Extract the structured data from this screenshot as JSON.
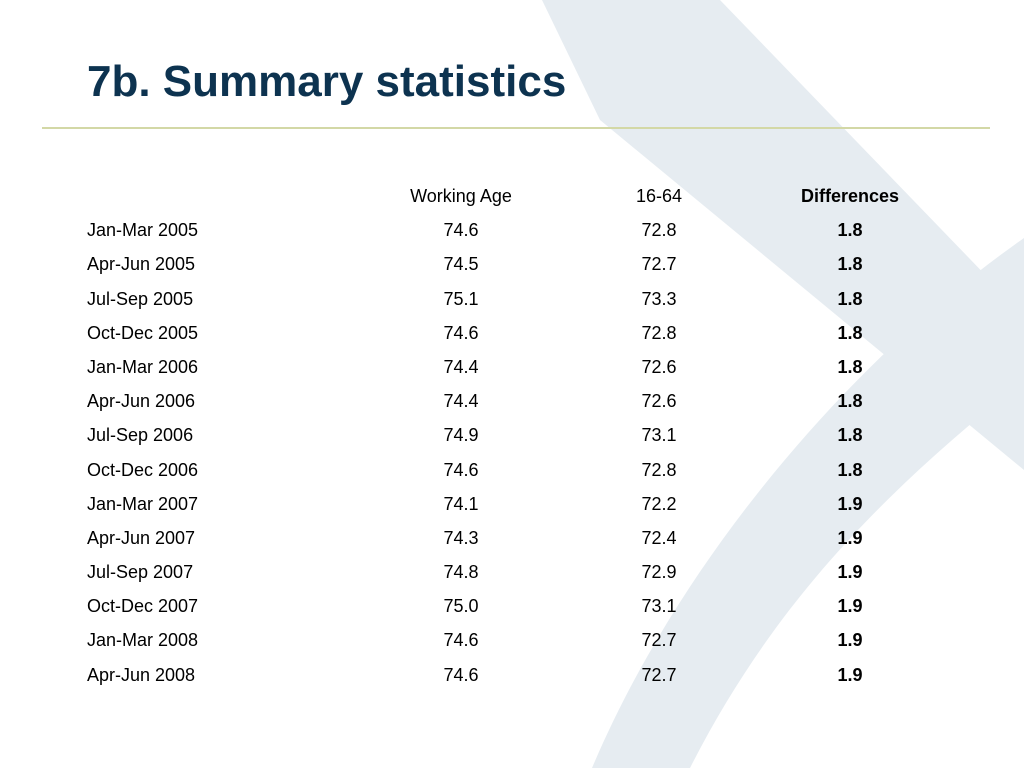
{
  "title": "7b. Summary statistics",
  "colors": {
    "title": "#0d3350",
    "rule": "#d3d8a6",
    "watermark": "#e6ecf1"
  },
  "table": {
    "headers": {
      "period": "",
      "working_age": "Working Age",
      "age_16_64": "16-64",
      "differences": "Differences"
    },
    "rows": [
      {
        "period": "Jan-Mar 2005",
        "working_age": "74.6",
        "age_16_64": "72.8",
        "difference": "1.8"
      },
      {
        "period": "Apr-Jun 2005",
        "working_age": "74.5",
        "age_16_64": "72.7",
        "difference": "1.8"
      },
      {
        "period": "Jul-Sep 2005",
        "working_age": "75.1",
        "age_16_64": "73.3",
        "difference": "1.8"
      },
      {
        "period": "Oct-Dec 2005",
        "working_age": "74.6",
        "age_16_64": "72.8",
        "difference": "1.8"
      },
      {
        "period": "Jan-Mar 2006",
        "working_age": "74.4",
        "age_16_64": "72.6",
        "difference": "1.8"
      },
      {
        "period": "Apr-Jun 2006",
        "working_age": "74.4",
        "age_16_64": "72.6",
        "difference": "1.8"
      },
      {
        "period": "Jul-Sep 2006",
        "working_age": "74.9",
        "age_16_64": "73.1",
        "difference": "1.8"
      },
      {
        "period": "Oct-Dec 2006",
        "working_age": "74.6",
        "age_16_64": "72.8",
        "difference": "1.8"
      },
      {
        "period": "Jan-Mar 2007",
        "working_age": "74.1",
        "age_16_64": "72.2",
        "difference": "1.9"
      },
      {
        "period": "Apr-Jun 2007",
        "working_age": "74.3",
        "age_16_64": "72.4",
        "difference": "1.9"
      },
      {
        "period": "Jul-Sep 2007",
        "working_age": "74.8",
        "age_16_64": "72.9",
        "difference": "1.9"
      },
      {
        "period": "Oct-Dec 2007",
        "working_age": "75.0",
        "age_16_64": "73.1",
        "difference": "1.9"
      },
      {
        "period": "Jan-Mar 2008",
        "working_age": "74.6",
        "age_16_64": "72.7",
        "difference": "1.9"
      },
      {
        "period": "Apr-Jun 2008",
        "working_age": "74.6",
        "age_16_64": "72.7",
        "difference": "1.9"
      }
    ]
  }
}
